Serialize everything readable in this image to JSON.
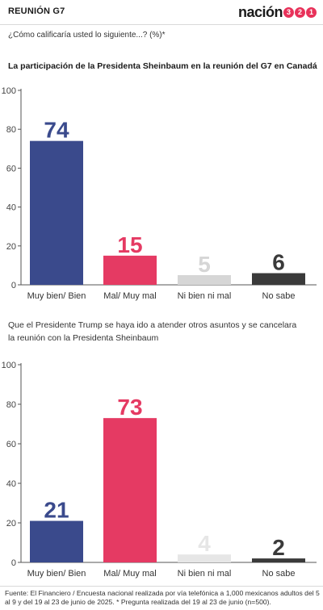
{
  "header": {
    "section": "REUNIÓN G7",
    "logo_word": "nación",
    "logo_digits": [
      "3",
      "2",
      "1"
    ]
  },
  "question": "¿Cómo calificaría usted lo siguiente...?  (%)*",
  "colors": {
    "navy": "#3a4a8c",
    "crimson": "#e53a63",
    "light_gray": "#d6d6d6",
    "dark_gray": "#3a3a3a",
    "accent": "#e8325a"
  },
  "chart_data": [
    {
      "type": "bar",
      "title": "La participación de la Presidenta Sheinbaum en la reunión del G7 en Canadá",
      "categories": [
        "Muy bien/ Bien",
        "Mal/ Muy mal",
        "Ni bien ni mal",
        "No sabe"
      ],
      "values": [
        74,
        15,
        5,
        6
      ],
      "bar_colors": [
        "#3a4a8c",
        "#e53a63",
        "#d6d6d6",
        "#3a3a3a"
      ],
      "label_colors": [
        "#3a4a8c",
        "#e53a63",
        "#d6d6d6",
        "#3a3a3a"
      ],
      "ylim": [
        0,
        100
      ],
      "yticks": [
        0,
        20,
        40,
        60,
        80,
        100
      ],
      "grid": false
    },
    {
      "type": "bar",
      "title": "Que el Presidente Trump se haya ido a atender otros asuntos y se cancelara la reunión con la Presidenta Sheinbaum",
      "categories": [
        "Muy bien/ Bien",
        "Mal/ Muy mal",
        "Ni bien ni mal",
        "No sabe"
      ],
      "values": [
        21,
        73,
        4,
        2
      ],
      "bar_colors": [
        "#3a4a8c",
        "#e53a63",
        "#e6e6e6",
        "#3a3a3a"
      ],
      "label_colors": [
        "#3a4a8c",
        "#e53a63",
        "#e6e6e6",
        "#3a3a3a"
      ],
      "ylim": [
        0,
        100
      ],
      "yticks": [
        0,
        20,
        40,
        60,
        80,
        100
      ],
      "grid": false
    }
  ],
  "footer": {
    "text": "Fuente: El Financiero / Encuesta nacional realizada por vía telefónica a 1,000 mexicanos adultos del 5 al 9 y del 19 al 23 de junio de 2025. * Pregunta realizada del 19 al 23 de junio (n=500)."
  }
}
